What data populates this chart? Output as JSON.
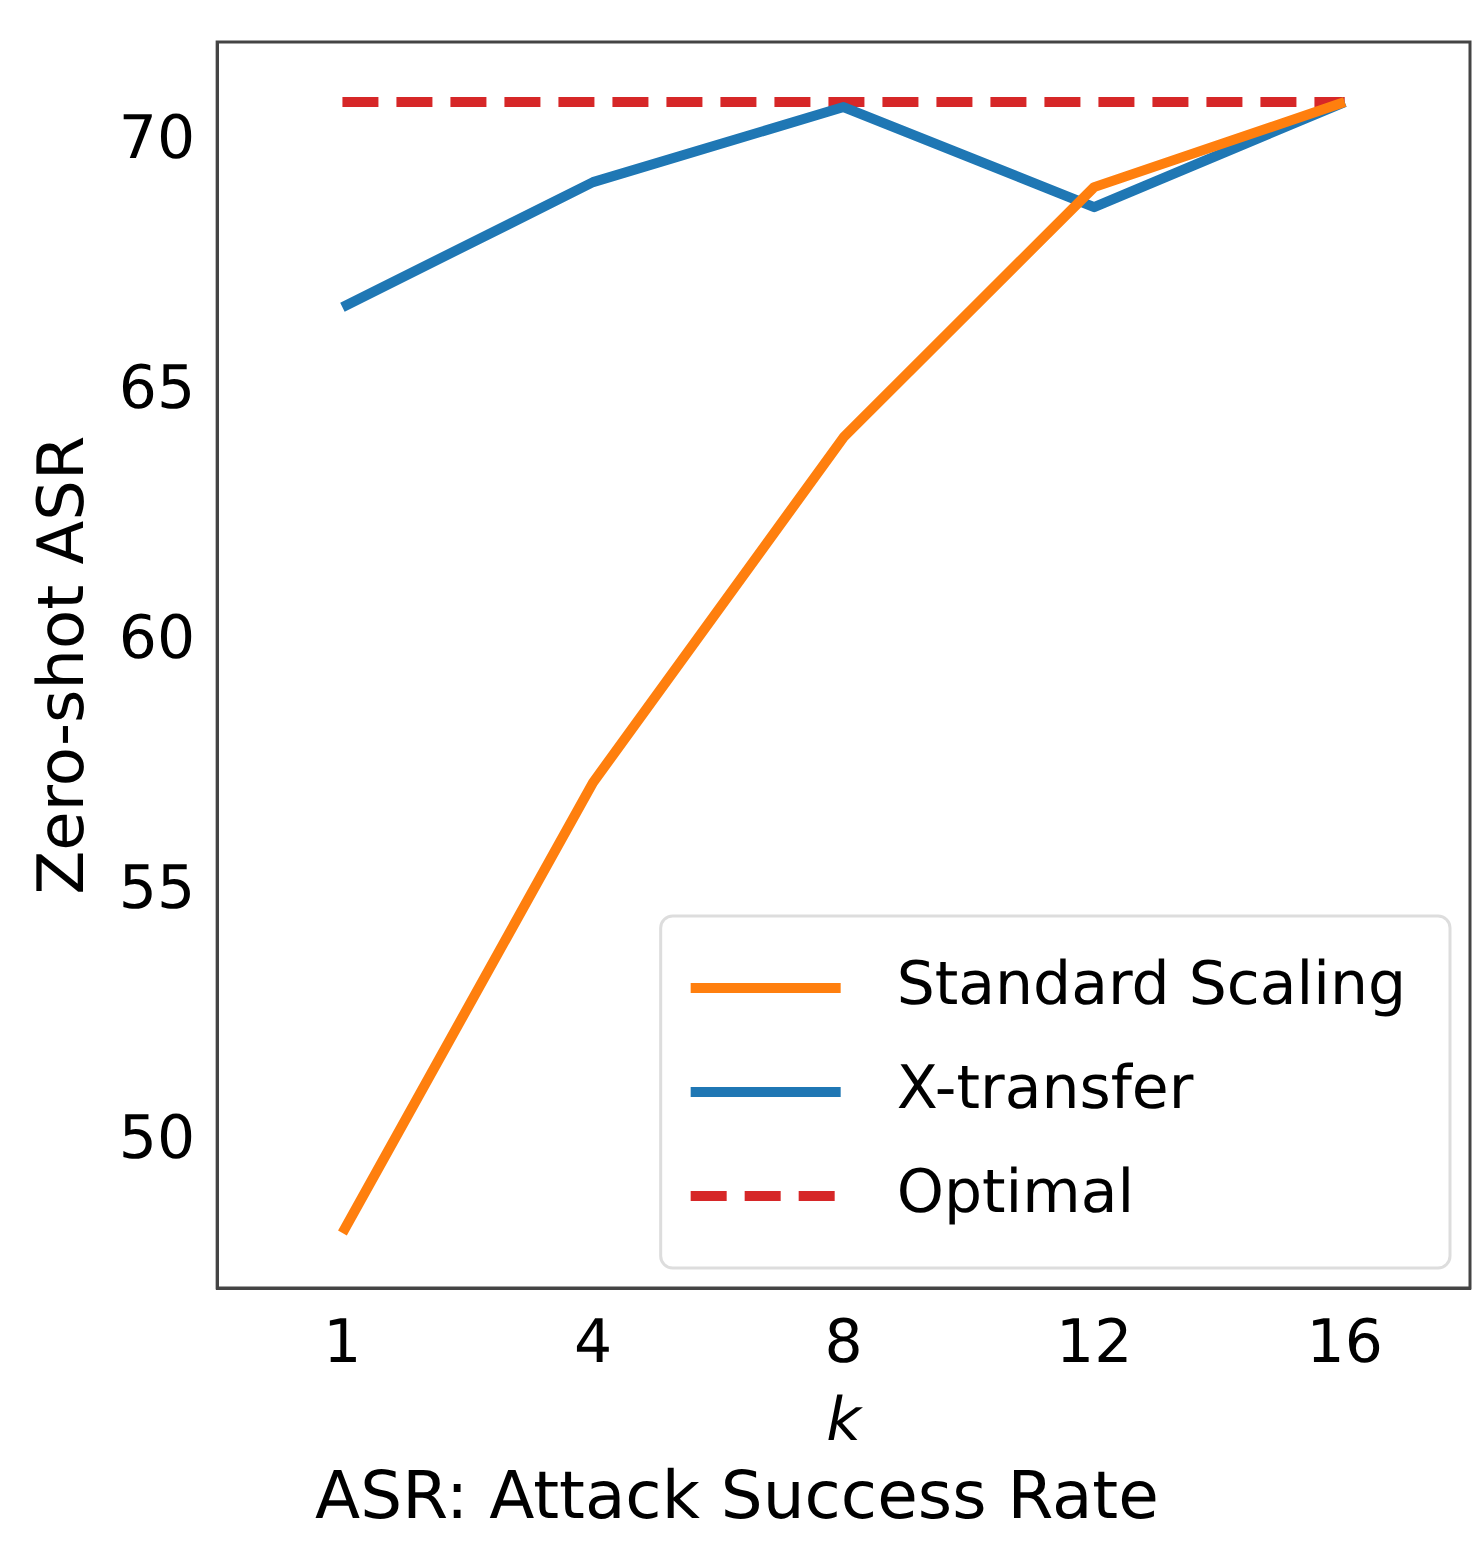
{
  "chart_data": {
    "type": "line",
    "xlabel": "k",
    "ylabel": "Zero-shot ASR",
    "categories": [
      "1",
      "4",
      "8",
      "12",
      "16"
    ],
    "series": [
      {
        "name": "Standard Scaling",
        "color": "#ff7f0e",
        "values": [
          48.2,
          57.2,
          64.1,
          69.1,
          70.8
        ]
      },
      {
        "name": "X-transfer",
        "color": "#1f77b4",
        "values": [
          66.7,
          69.2,
          70.7,
          68.7,
          70.8
        ]
      },
      {
        "name": "Optimal",
        "color": "#d62728",
        "line_style": "dashed",
        "values": [
          70.8,
          70.8,
          70.8,
          70.8,
          70.8
        ]
      }
    ],
    "ylim": [
      47.1,
      72.0
    ],
    "yticks": [
      50,
      55,
      60,
      65,
      70
    ],
    "grid": false,
    "marker": "none",
    "legend": "bottom right",
    "annotations": [
      "ASR: Attack Success Rate"
    ]
  }
}
